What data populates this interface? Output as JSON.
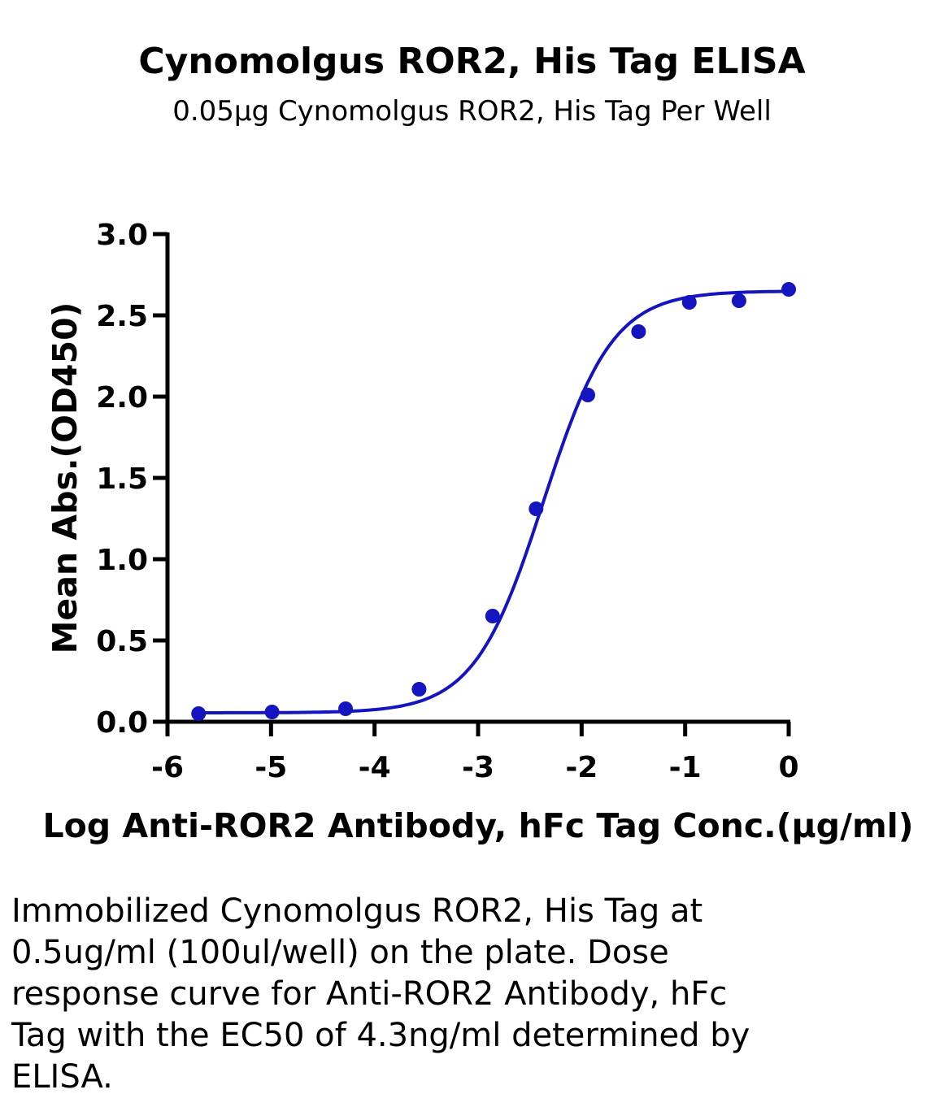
{
  "chart_data": {
    "type": "scatter",
    "title": "Cynomolgus ROR2, His Tag ELISA",
    "subtitle": "0.05μg Cynomolgus ROR2, His Tag Per Well",
    "xlabel": "Log Anti-ROR2 Antibody, hFc Tag Conc.(μg/ml)",
    "ylabel": "Mean Abs.(OD450)",
    "xlim": [
      -6,
      0
    ],
    "ylim": [
      0,
      3.0
    ],
    "xticks": [
      -6,
      -5,
      -4,
      -3,
      -2,
      -1,
      0
    ],
    "xtick_labels": [
      "-6",
      "-5",
      "-4",
      "-3",
      "-2",
      "-1",
      "0"
    ],
    "yticks": [
      0,
      0.5,
      1.0,
      1.5,
      2.0,
      2.5,
      3.0
    ],
    "ytick_labels": [
      "0.0",
      "0.5",
      "1.0",
      "1.5",
      "2.0",
      "2.5",
      "3.0"
    ],
    "grid": false,
    "color": "#1515c0",
    "points": [
      {
        "x": -5.7,
        "y": 0.05
      },
      {
        "x": -4.99,
        "y": 0.06
      },
      {
        "x": -4.28,
        "y": 0.08
      },
      {
        "x": -3.57,
        "y": 0.2
      },
      {
        "x": -2.86,
        "y": 0.65
      },
      {
        "x": -2.44,
        "y": 1.31
      },
      {
        "x": -1.94,
        "y": 2.01
      },
      {
        "x": -1.45,
        "y": 2.4
      },
      {
        "x": -0.96,
        "y": 2.58
      },
      {
        "x": -0.48,
        "y": 2.59
      },
      {
        "x": 0.0,
        "y": 2.66
      }
    ],
    "fit": {
      "bottom": 0.055,
      "top": 2.65,
      "log_ec50": -2.37,
      "hill": 1.3
    }
  },
  "caption": "Immobilized Cynomolgus ROR2, His Tag at 0.5ug/ml (100ul/well) on the plate. Dose response curve for Anti-ROR2 Antibody, hFc Tag with the EC50 of 4.3ng/ml determined by ELISA."
}
